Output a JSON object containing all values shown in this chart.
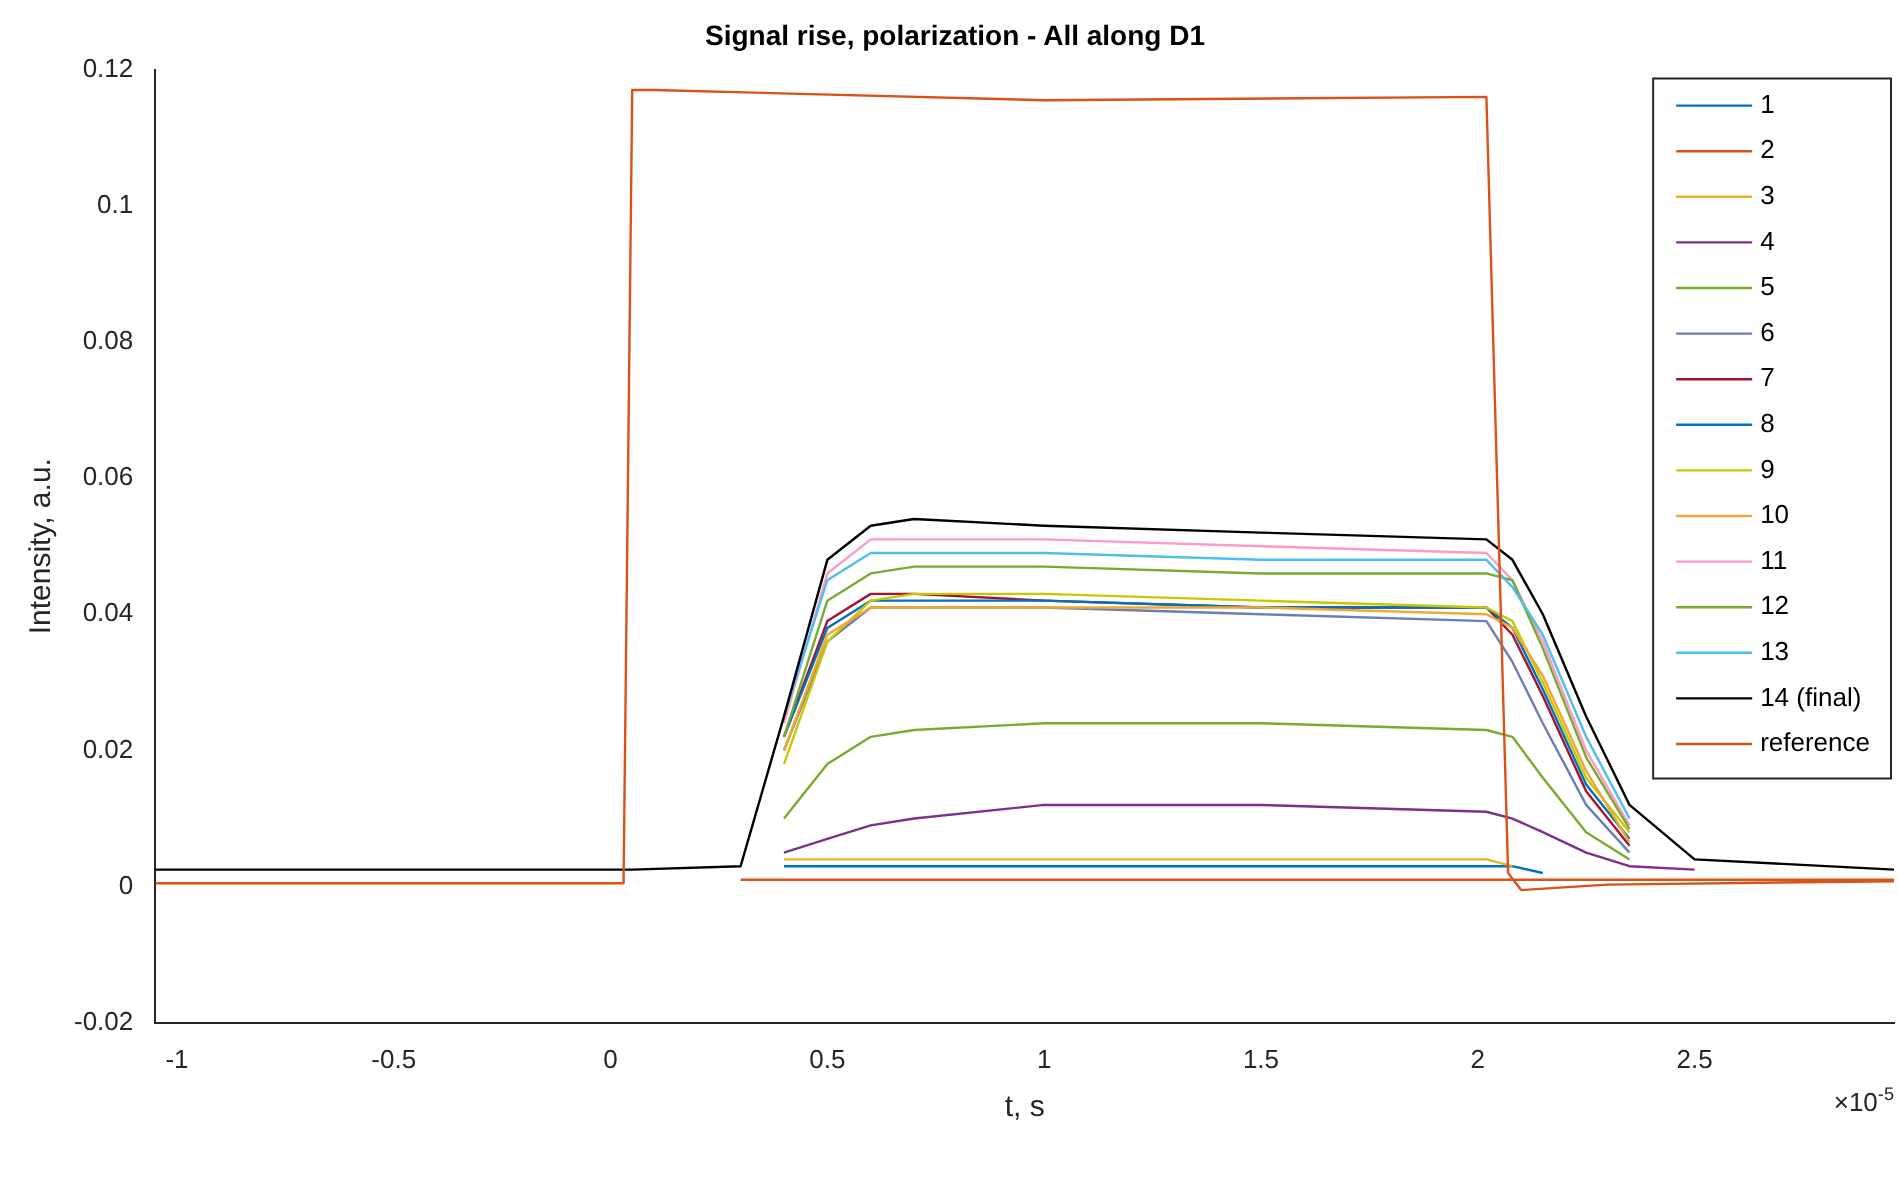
{
  "chart_data": {
    "type": "line",
    "title": "Signal rise, polarization - All along D1",
    "xlabel": "t, s",
    "ylabel": "Intensity, a.u.",
    "annotations": [
      "×10$^{-5}$"
    ],
    "x": [
      -1.05,
      0.03,
      0.05,
      0.3,
      0.4,
      0.5,
      0.6,
      0.7,
      1.0,
      1.5,
      2.02,
      2.08,
      2.15,
      2.25,
      2.35,
      2.5,
      2.96
    ],
    "xlim": [
      -1.05,
      2.96
    ],
    "xticks": [
      -1,
      -0.5,
      0,
      0.5,
      1,
      1.5,
      2,
      2.5
    ],
    "ylim": [
      -0.02,
      0.12
    ],
    "yticks": [
      -0.02,
      0,
      0.02,
      0.04,
      0.06,
      0.08,
      0.1,
      0.12
    ],
    "grid": false,
    "legend": "top right",
    "marker": "none",
    "line_style": "solid",
    "series": [
      {
        "name": "1",
        "color": "#0072bd",
        "values": [
          null,
          null,
          null,
          null,
          0.003,
          0.003,
          0.003,
          0.003,
          0.003,
          0.003,
          0.003,
          0.003,
          0.002,
          null,
          null,
          null,
          null
        ]
      },
      {
        "name": "2",
        "color": "#d95319",
        "values": [
          null,
          null,
          null,
          0.001,
          0.001,
          0.001,
          0.001,
          0.001,
          0.001,
          0.001,
          0.001,
          0.001,
          0.001,
          0.001,
          0.001,
          0.001,
          0.001
        ]
      },
      {
        "name": "3",
        "color": "#edb120",
        "values": [
          null,
          null,
          null,
          null,
          0.004,
          0.004,
          0.004,
          0.004,
          0.004,
          0.004,
          0.004,
          0.003,
          null,
          null,
          null,
          null,
          null
        ]
      },
      {
        "name": "4",
        "color": "#7e2f8e",
        "values": [
          null,
          null,
          null,
          null,
          0.005,
          0.007,
          0.009,
          0.01,
          0.012,
          0.012,
          0.011,
          0.01,
          0.008,
          0.005,
          0.003,
          0.0025,
          null
        ]
      },
      {
        "name": "5",
        "color": "#77ac30",
        "values": [
          null,
          null,
          null,
          null,
          0.01,
          0.018,
          0.022,
          0.023,
          0.024,
          0.024,
          0.023,
          0.022,
          0.016,
          0.008,
          0.004,
          null,
          null
        ]
      },
      {
        "name": "6",
        "color": "#6b7fb5",
        "values": [
          null,
          null,
          null,
          null,
          0.02,
          0.036,
          0.041,
          0.041,
          0.041,
          0.04,
          0.039,
          0.033,
          0.024,
          0.012,
          0.005,
          null,
          null
        ]
      },
      {
        "name": "7",
        "color": "#a2142f",
        "values": [
          null,
          null,
          null,
          null,
          0.022,
          0.039,
          0.043,
          0.043,
          0.042,
          0.041,
          0.041,
          0.037,
          0.028,
          0.014,
          0.006,
          null,
          null
        ]
      },
      {
        "name": "8",
        "color": "#0072bd",
        "values": [
          null,
          null,
          null,
          null,
          0.022,
          0.038,
          0.042,
          0.042,
          0.042,
          0.041,
          0.041,
          0.038,
          0.029,
          0.015,
          0.007,
          null,
          null
        ]
      },
      {
        "name": "9",
        "color": "#c8c800",
        "values": [
          null,
          null,
          null,
          null,
          0.018,
          0.036,
          0.042,
          0.043,
          0.043,
          0.042,
          0.041,
          0.039,
          0.03,
          0.016,
          0.008,
          null,
          null
        ]
      },
      {
        "name": "10",
        "color": "#f0a830",
        "values": [
          null,
          null,
          null,
          null,
          0.02,
          0.037,
          0.041,
          0.041,
          0.041,
          0.041,
          0.04,
          0.038,
          0.031,
          0.017,
          0.0065,
          null,
          null
        ]
      },
      {
        "name": "11",
        "color": "#ff99cc",
        "values": [
          null,
          null,
          null,
          null,
          0.024,
          0.046,
          0.051,
          0.051,
          0.051,
          0.05,
          0.049,
          0.045,
          0.036,
          0.02,
          0.009,
          null,
          null
        ]
      },
      {
        "name": "12",
        "color": "#77ac30",
        "values": [
          null,
          null,
          null,
          null,
          0.022,
          0.042,
          0.046,
          0.047,
          0.047,
          0.046,
          0.046,
          0.045,
          0.035,
          0.019,
          0.0085,
          null,
          null
        ]
      },
      {
        "name": "13",
        "color": "#4dbeee",
        "values": [
          null,
          null,
          null,
          null,
          0.025,
          0.045,
          0.049,
          0.049,
          0.049,
          0.048,
          0.048,
          0.044,
          0.037,
          0.022,
          0.01,
          null,
          null
        ]
      },
      {
        "name": "14 (final)",
        "color": "#000000",
        "values": [
          0.0025,
          0.0025,
          0.0025,
          0.003,
          0.025,
          0.048,
          0.053,
          0.054,
          0.053,
          0.052,
          0.051,
          0.048,
          0.04,
          0.025,
          0.012,
          0.004,
          0.0025
        ]
      },
      {
        "name": "reference",
        "color": "#d95319",
        "x": [
          -1.05,
          0.03,
          0.05,
          0.1,
          1.0,
          2.02,
          2.07,
          2.1,
          2.3,
          2.96
        ],
        "values": [
          0.0005,
          0.0005,
          0.117,
          0.117,
          0.1155,
          0.116,
          0.002,
          -0.0005,
          0.0003,
          0.0008
        ]
      }
    ]
  }
}
